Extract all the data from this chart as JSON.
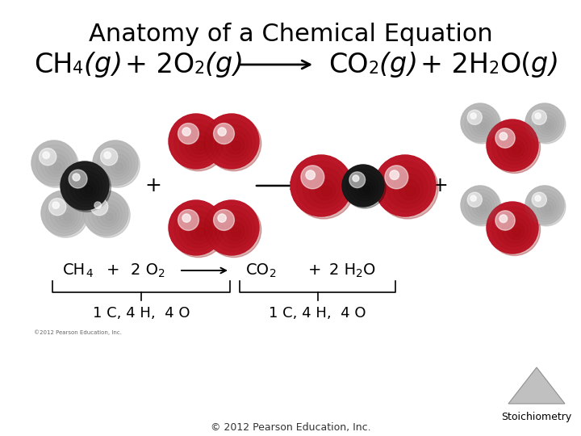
{
  "title": "Anatomy of a Chemical Equation",
  "title_fontsize": 22,
  "bg_color": "#ffffff",
  "crimson": "#C0192C",
  "dark_red": "#8B0000",
  "silver": "#BEBEBE",
  "silver_dark": "#888888",
  "silver_light": "#E0E0E0",
  "carbon_color": "#222222",
  "carbon_dark": "#000000",
  "eq_fontsize": 24,
  "label_fontsize": 14,
  "count_fontsize": 13,
  "footer_text": "© 2012 Pearson Education, Inc.",
  "stoich_text": "Stoichiometry"
}
